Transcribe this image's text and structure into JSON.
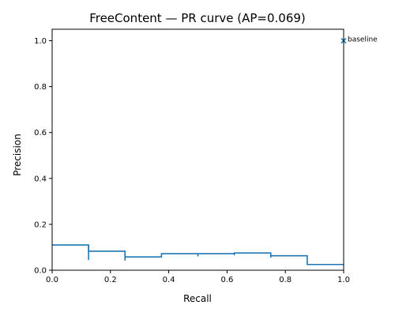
{
  "chart_data": {
    "type": "line",
    "title": "FreeContent — PR curve (AP=0.069)",
    "xlabel": "Recall",
    "ylabel": "Precision",
    "xlim": [
      0.0,
      1.0
    ],
    "ylim": [
      0.0,
      1.05
    ],
    "xticks": [
      "0.0",
      "0.2",
      "0.4",
      "0.6",
      "0.8",
      "1.0"
    ],
    "yticks": [
      "0.0",
      "0.2",
      "0.4",
      "0.6",
      "0.8",
      "1.0"
    ],
    "grid": false,
    "series": [
      {
        "style": "step",
        "color": "#1f77b4",
        "points": [
          {
            "recall": 0.0,
            "precision": 0.11
          },
          {
            "recall": 0.125,
            "precision": 0.11
          },
          {
            "recall": 0.125,
            "precision": 0.083
          },
          {
            "recall": 0.25,
            "precision": 0.083
          },
          {
            "recall": 0.25,
            "precision": 0.058
          },
          {
            "recall": 0.375,
            "precision": 0.058
          },
          {
            "recall": 0.375,
            "precision": 0.072
          },
          {
            "recall": 0.625,
            "precision": 0.072
          },
          {
            "recall": 0.625,
            "precision": 0.075
          },
          {
            "recall": 0.75,
            "precision": 0.075
          },
          {
            "recall": 0.75,
            "precision": 0.063
          },
          {
            "recall": 0.875,
            "precision": 0.063
          },
          {
            "recall": 0.875,
            "precision": 0.025
          },
          {
            "recall": 1.0,
            "precision": 0.025
          }
        ],
        "threshold_ticks": [
          {
            "recall": 0.125,
            "low": 0.045,
            "high": 0.11
          },
          {
            "recall": 0.25,
            "low": 0.042,
            "high": 0.083
          },
          {
            "recall": 0.5,
            "low": 0.06,
            "high": 0.072
          },
          {
            "recall": 0.625,
            "low": 0.065,
            "high": 0.075
          },
          {
            "recall": 0.75,
            "low": 0.055,
            "high": 0.063
          }
        ]
      }
    ],
    "baseline_marker": {
      "recall": 1.0,
      "precision": 1.0,
      "marker": "x",
      "label": "baseline",
      "color": "#1f77b4"
    }
  }
}
